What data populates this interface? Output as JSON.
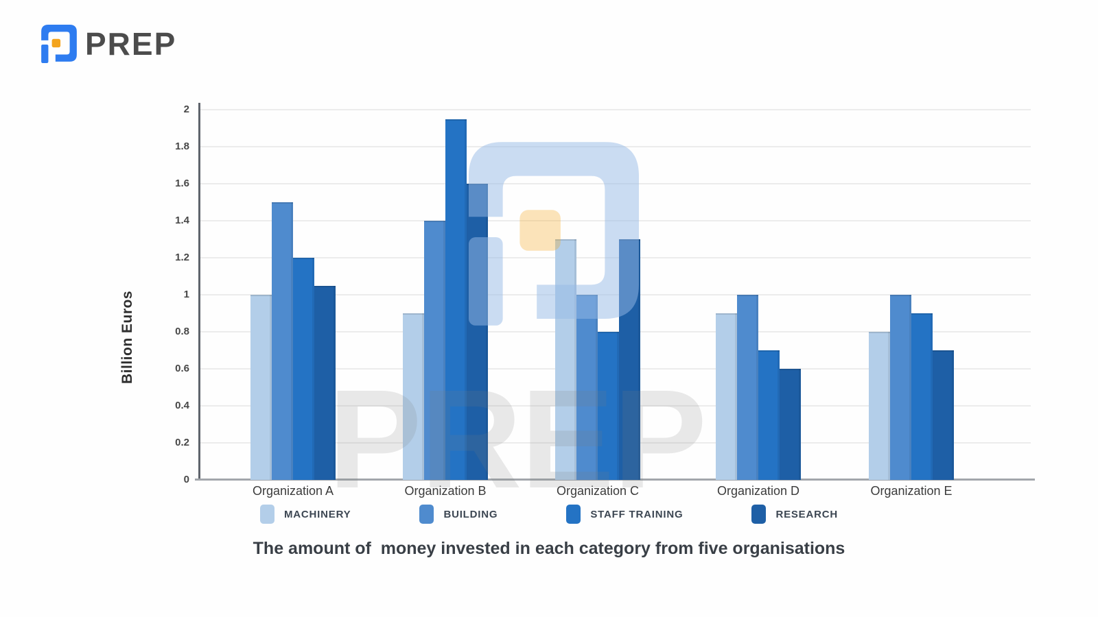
{
  "logo": {
    "text": "PREP",
    "blue": "#2e7cf0",
    "orange": "#f3a41d",
    "text_color": "#4c4c4c"
  },
  "watermark": {
    "text": "PREP"
  },
  "chart_data": {
    "type": "bar",
    "title": "The amount of  money invested in each category from five organisations",
    "xlabel": "",
    "ylabel": "Billion Euros",
    "ylim": [
      0,
      2
    ],
    "ytick_step": 0.2,
    "yticks": [
      "2",
      "1.8",
      "1.6",
      "1.4",
      "1.2",
      "1",
      "0.8",
      "0.6",
      "0.4",
      "0.2",
      "0"
    ],
    "grid": true,
    "legend_position": "bottom",
    "categories": [
      "Organization A",
      "Organization B",
      "Organization C",
      "Organization D",
      "Organization E"
    ],
    "series": [
      {
        "name": "MACHINERY",
        "color": "#b3cee9",
        "values": [
          1.0,
          0.9,
          1.3,
          0.9,
          0.8
        ]
      },
      {
        "name": "BUILDING",
        "color": "#4f8bce",
        "values": [
          1.5,
          1.4,
          1.0,
          1.0,
          1.0
        ]
      },
      {
        "name": "STAFF TRAINING",
        "color": "#2473c4",
        "values": [
          1.2,
          1.95,
          0.8,
          0.7,
          0.9
        ]
      },
      {
        "name": "RESEARCH",
        "color": "#1e5fa6",
        "values": [
          1.05,
          1.6,
          1.3,
          0.6,
          0.7
        ]
      }
    ]
  }
}
